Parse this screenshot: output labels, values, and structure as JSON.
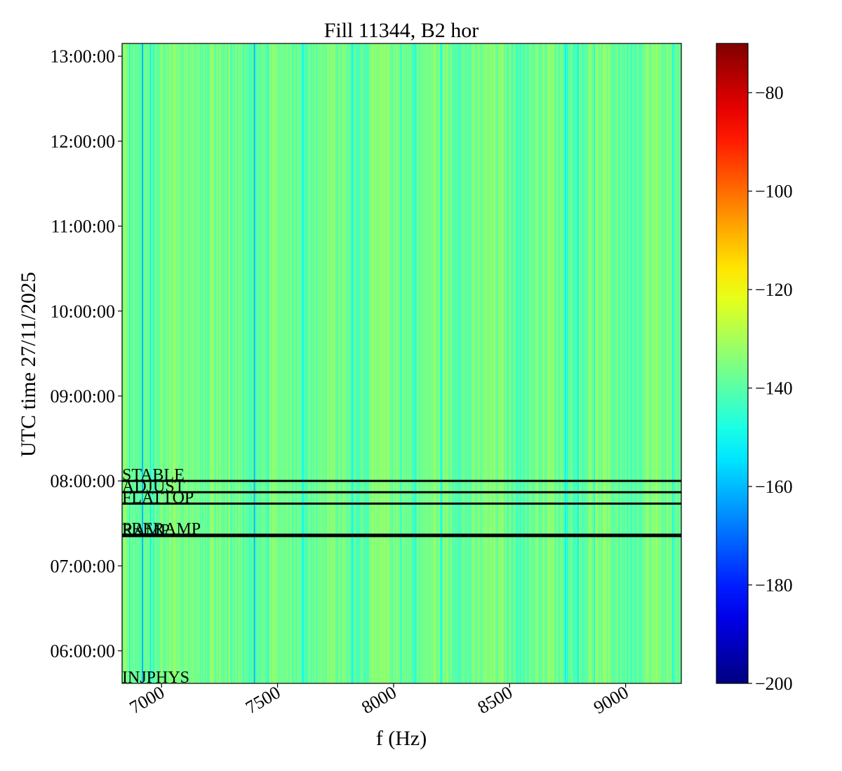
{
  "chart_data": {
    "type": "heatmap",
    "title": "Fill 11344, B2 hor",
    "xlabel": "f (Hz)",
    "ylabel": "UTC time 27/11/2025",
    "xlim": [
      6830,
      9240
    ],
    "ylim": [
      "05:37:00",
      "13:09:00"
    ],
    "x_ticks": [
      7000,
      7500,
      8000,
      8500,
      9000
    ],
    "x_tick_labels": [
      "7000",
      "7500",
      "8000",
      "8500",
      "9000"
    ],
    "y_ticks": [
      "06:00:00",
      "07:00:00",
      "08:00:00",
      "09:00:00",
      "10:00:00",
      "11:00:00",
      "12:00:00",
      "13:00:00"
    ],
    "y_tick_labels": [
      "06:00:00",
      "07:00:00",
      "08:00:00",
      "09:00:00",
      "10:00:00",
      "11:00:00",
      "12:00:00",
      "13:00:00"
    ],
    "colorbar": {
      "range": [
        -200,
        -70
      ],
      "ticks": [
        -80,
        -100,
        -120,
        -140,
        -160,
        -180,
        -200
      ],
      "tick_labels": [
        "−80",
        "−100",
        "−120",
        "−140",
        "−160",
        "−180",
        "−200"
      ],
      "colormap": "jet"
    },
    "cell_value_range": [
      -160,
      -130
    ],
    "typical_value": -137,
    "strong_lines_hz": [
      6918,
      7400
    ],
    "phases": [
      {
        "label": "INJPHYS",
        "time": "05:37:00"
      },
      {
        "label": "RAMP",
        "time": "07:21:00"
      },
      {
        "label": "PRERAMP",
        "time": "07:22:00"
      },
      {
        "label": "FLATTOP",
        "time": "07:44:00"
      },
      {
        "label": "ADJUST",
        "time": "07:52:00"
      },
      {
        "label": "STABLE",
        "time": "08:00:00"
      }
    ]
  }
}
